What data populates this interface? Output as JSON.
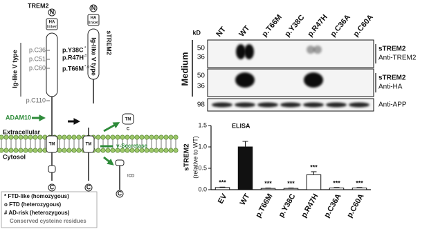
{
  "diagram": {
    "trem2_label": "TREM2",
    "strem2_label": "sTREM2",
    "n_labels": [
      "N",
      "N"
    ],
    "ha_labels": [
      "HA",
      "HA"
    ],
    "linker_labels": [
      "linker",
      "linker"
    ],
    "ig_labels": [
      "Ig-like V type",
      "Ig-like V type"
    ],
    "cysteines": [
      "p.C36",
      "p.C51",
      "p.C60",
      "p.C110"
    ],
    "variants": [
      {
        "name": "p.Y38C",
        "mark": "*"
      },
      {
        "name": "p.R47H",
        "mark": "#"
      },
      {
        "name": "p.T66M",
        "mark": "*,o"
      }
    ],
    "adam10": "ADAM10",
    "extracellular": "Extracellular",
    "cytosol": "Cytosol",
    "tm_labels": [
      "TM",
      "TM",
      "TM"
    ],
    "gamma_secretase": "γ-Secretase",
    "icd": "ICD",
    "c_labels": [
      "C",
      "C",
      "C",
      "C"
    ],
    "legend": [
      "* FTD-like (homozygous)",
      "o FTD (heterozygous)",
      "# AD-risk (heterozygous)",
      "Conserved cysteine residues"
    ]
  },
  "blot": {
    "kd": "kD",
    "section": "Medium",
    "lanes": [
      "NT",
      "WT",
      "p.T66M",
      "p.Y38C",
      "p.R47H",
      "p.C36A",
      "p.C60A"
    ],
    "rows": [
      {
        "markers": [
          50,
          36
        ],
        "target": "sTREM2",
        "antibody": "Anti-TREM2"
      },
      {
        "markers": [
          50,
          36
        ],
        "target": "sTREM2",
        "antibody": "Anti-HA"
      },
      {
        "markers": [
          98
        ],
        "antibody": "Anti-APP"
      }
    ]
  },
  "chart_data": {
    "type": "bar",
    "title": "ELISA",
    "ylabel": [
      "sTREM2",
      "(relative to WT)"
    ],
    "categories": [
      "EV",
      "WT",
      "p.T66M",
      "p.Y38C",
      "p.R47H",
      "p.C36A",
      "p.C60A"
    ],
    "values": [
      0.05,
      1.0,
      0.03,
      0.03,
      0.35,
      0.04,
      0.04
    ],
    "errors": [
      0.01,
      0.13,
      0.01,
      0.01,
      0.07,
      0.01,
      0.01
    ],
    "colors": [
      "#ffffff",
      "#111111",
      "#ffffff",
      "#ffffff",
      "#ffffff",
      "#ffffff",
      "#ffffff"
    ],
    "significance": [
      "***",
      null,
      "***",
      "***",
      "***",
      "***",
      "***"
    ],
    "ylim": [
      0,
      1.5
    ],
    "yticks": [
      {
        "value": 0,
        "label": "0.0"
      },
      {
        "value": 0.5,
        "label": "0.5"
      },
      {
        "value": 1,
        "label": "1.0"
      },
      {
        "value": 1.5,
        "label": "1.5"
      }
    ]
  }
}
